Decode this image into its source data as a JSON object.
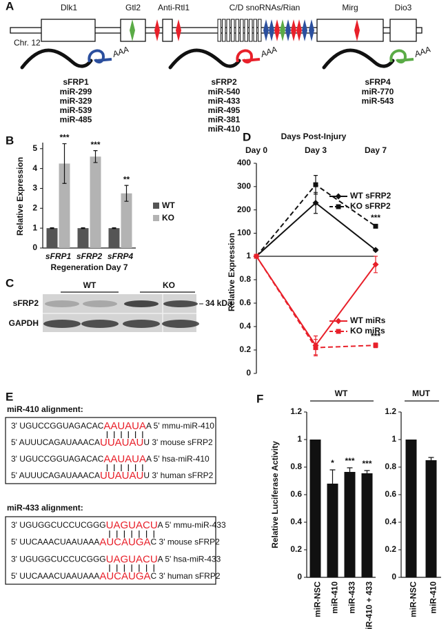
{
  "panel_labels": [
    "A",
    "B",
    "C",
    "D",
    "E",
    "F"
  ],
  "locus": {
    "chromosome": "Chr. 12",
    "genes": [
      "Dlk1",
      "Gtl2",
      "Anti-Rtl1",
      "C/D snoRNAs/Rian",
      "Mirg",
      "Dio3"
    ]
  },
  "targets": [
    {
      "name": "sFRP1",
      "tail": "AAA",
      "color": "#2b4f9e",
      "mirs": [
        "miR-299",
        "miR-329",
        "miR-539",
        "miR-485"
      ]
    },
    {
      "name": "sFRP2",
      "tail": "AAA",
      "color": "#e8202a",
      "mirs": [
        "miR-540",
        "miR-433",
        "miR-495",
        "miR-381",
        "miR-410"
      ]
    },
    {
      "name": "sFRP4",
      "tail": "AAA",
      "color": "#5aab46",
      "mirs": [
        "miR-770",
        "miR-543"
      ]
    }
  ],
  "blot": {
    "lanes": [
      "WT",
      "KO"
    ],
    "rows": [
      "sFRP2",
      "GAPDH"
    ],
    "marker": "34 kDa"
  },
  "alignments": [
    {
      "title": "miR-410 alignment:",
      "rows": [
        {
          "left": "3' UGUCCGGUAGACAC",
          "match": "AAUAUA",
          "right": "A 5' mmu-miR-410"
        },
        {
          "left": "5' AUUUCAGAUAAACA",
          "match": "UUAUAU",
          "right": "U 3' mouse sFRP2"
        },
        {
          "left": "3' UGUCCGGUAGACAC",
          "match": "AAUAUA",
          "right": "A 5' hsa-miR-410"
        },
        {
          "left": "5' AUUUCAGAUAAACA",
          "match": "UUAUAU",
          "right": "U 3' human sFRP2"
        }
      ]
    },
    {
      "title": "miR-433 alignment:",
      "rows": [
        {
          "left": "3' UGUGGCUCCUCGGG",
          "match": "UAGUACU",
          "right": "A 5' mmu-miR-433"
        },
        {
          "left": "5' UUCAAACUAAUAAA",
          "match": "AUCAUGA",
          "right": "C 3' mouse sFRP2"
        },
        {
          "left": "3' UGUGGCUCCUCGGG",
          "match": "UAGUACU",
          "right": "A 5' hsa-miR-433"
        },
        {
          "left": "5' UUCAAACUAAUAAA",
          "match": "AUCAUGA",
          "right": "C 3' human sFRP2"
        }
      ]
    }
  ],
  "chart_data": [
    {
      "type": "bar",
      "categories": [
        "sFRP1",
        "sFRP2",
        "sFRP4"
      ],
      "xlabel": "Regeneration Day 7",
      "ylabel": "Relative Expression",
      "ylim": [
        0,
        5.2
      ],
      "yticks": [
        0,
        1,
        2,
        3,
        4,
        5
      ],
      "series": [
        {
          "name": "WT",
          "color": "#555555",
          "values": [
            1,
            1,
            1
          ],
          "errors": [
            0.02,
            0.02,
            0.02
          ]
        },
        {
          "name": "KO",
          "color": "#b3b3b3",
          "values": [
            4.25,
            4.6,
            2.75
          ],
          "errors": [
            1.0,
            0.3,
            0.4
          ],
          "significance": [
            "***",
            "***",
            "**"
          ]
        }
      ]
    },
    {
      "type": "line",
      "title": "Days Post-Injury",
      "categories": [
        "Day 0",
        "Day 3",
        "Day 7"
      ],
      "ylabel": "Relative Expression",
      "ylim_upper": [
        1,
        400
      ],
      "yticks_upper": [
        1,
        100,
        200,
        300,
        400
      ],
      "ylim_lower": [
        0,
        1
      ],
      "yticks_lower": [
        0,
        0.2,
        0.4,
        0.6,
        0.8
      ],
      "series": [
        {
          "name": "WT sFRP2",
          "panel": "upper",
          "color": "#111111",
          "dashed": false,
          "marker": "diamond",
          "values": [
            1,
            230,
            28
          ],
          "errors": [
            0,
            45,
            5
          ],
          "significance": [
            null,
            null,
            null
          ]
        },
        {
          "name": "KO sFRP2",
          "panel": "upper",
          "color": "#111111",
          "dashed": true,
          "marker": "square",
          "values": [
            1,
            308,
            130
          ],
          "errors": [
            0,
            40,
            8
          ],
          "significance": [
            null,
            null,
            "***"
          ]
        },
        {
          "name": "WT miRs",
          "panel": "lower",
          "color": "#e8202a",
          "dashed": false,
          "marker": "diamond",
          "values": [
            1,
            0.24,
            0.93
          ],
          "errors": [
            0,
            0.08,
            0.07
          ],
          "significance": [
            null,
            null,
            null
          ]
        },
        {
          "name": "KO miRs",
          "panel": "lower",
          "color": "#e8202a",
          "dashed": true,
          "marker": "square",
          "values": [
            1,
            0.22,
            0.24
          ],
          "errors": [
            0,
            0.07,
            0.02
          ],
          "significance": [
            null,
            null,
            "***"
          ]
        }
      ]
    },
    {
      "type": "bar",
      "header": "WT",
      "ylabel": "Relative Luciferase Activity",
      "categories": [
        "miR-NSC",
        "miR-410",
        "miR-433",
        "miR-410 + 433"
      ],
      "color": "#111111",
      "values": [
        1,
        0.68,
        0.765,
        0.755
      ],
      "errors": [
        0,
        0.1,
        0.03,
        0.02
      ],
      "significance": [
        null,
        "*",
        "***",
        "***"
      ],
      "ylim": [
        0,
        1.2
      ],
      "yticks": [
        0,
        0.2,
        0.4,
        0.6,
        0.8,
        1,
        1.2
      ]
    },
    {
      "type": "bar",
      "header": "MUT",
      "categories": [
        "miR-NSC",
        "miR-410"
      ],
      "color": "#111111",
      "values": [
        1,
        0.85
      ],
      "errors": [
        0,
        0.02
      ],
      "ylim": [
        0,
        1.2
      ],
      "yticks": [
        0,
        0.2,
        0.4,
        0.6,
        0.8,
        1,
        1.2
      ]
    }
  ]
}
